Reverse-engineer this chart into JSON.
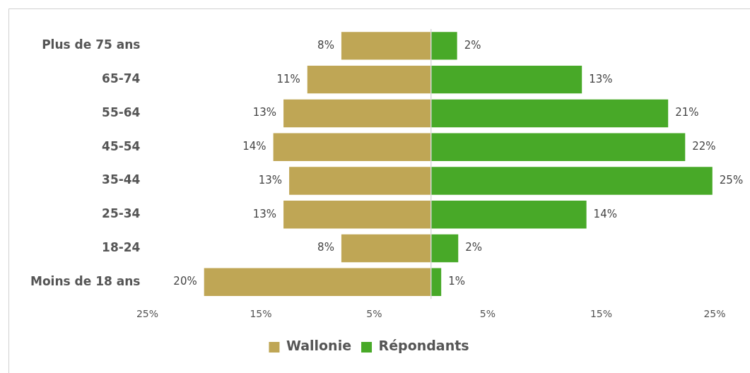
{
  "chart_data": {
    "type": "bar",
    "orientation": "horizontal",
    "categories": [
      "Plus de 75 ans",
      "65-74",
      "55-64",
      "45-54",
      "35-44",
      "25-34",
      "18-24",
      "Moins de 18 ans"
    ],
    "series": [
      {
        "name": "Wallonie",
        "color": "#bfa655",
        "base": [
          -7.9,
          -10.9,
          -13.0,
          -13.9,
          -12.5,
          -13.0,
          -7.9,
          -20.0
        ],
        "values": [
          7.9,
          10.9,
          13.0,
          13.9,
          12.5,
          13.0,
          7.9,
          20.0
        ],
        "value_labels": [
          "8%",
          "11%",
          "13%",
          "14%",
          "13%",
          "13%",
          "8%",
          "20%"
        ]
      },
      {
        "name": "Répondants",
        "color": "#48a928",
        "values": [
          2.3,
          13.3,
          20.9,
          22.4,
          24.8,
          13.7,
          2.4,
          0.9
        ],
        "value_labels": [
          "2%",
          "13%",
          "21%",
          "22%",
          "25%",
          "14%",
          "2%",
          "1%"
        ]
      }
    ],
    "xlim": [
      -25,
      25
    ],
    "xticks": [
      {
        "value": -25,
        "label": "25%"
      },
      {
        "value": -15,
        "label": "15%"
      },
      {
        "value": -5,
        "label": "5%"
      },
      {
        "value": 5,
        "label": "5%"
      },
      {
        "value": 15,
        "label": "15%"
      },
      {
        "value": 25,
        "label": "25%"
      }
    ],
    "ref_lines": [
      {
        "axis": "x",
        "value": 0,
        "color": "#d9d9d9"
      }
    ],
    "legend": "bottom"
  }
}
